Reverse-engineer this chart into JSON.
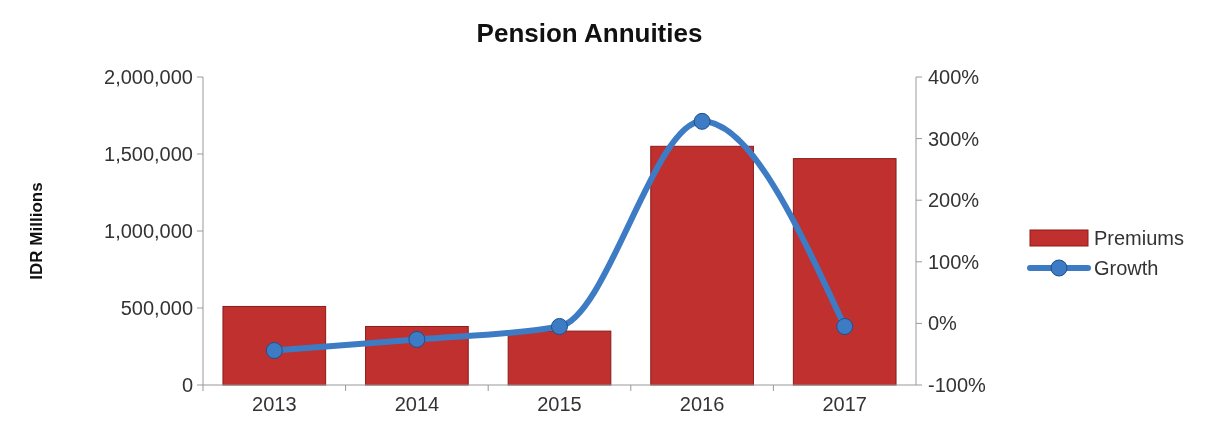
{
  "chart_data": {
    "type": "bar",
    "title": "Pension Annuities",
    "ylabel": "IDR Millions",
    "categories": [
      "2013",
      "2014",
      "2015",
      "2016",
      "2017"
    ],
    "series": [
      {
        "name": "Premiums",
        "color": "#c0302e",
        "values": [
          510000,
          380000,
          350000,
          1550000,
          1470000
        ]
      },
      {
        "name": "Growth",
        "type": "line",
        "axis": "y2",
        "color": "#3d7cc4",
        "values": [
          -44,
          -26,
          -5,
          328,
          -5
        ]
      }
    ],
    "ylim": [
      0,
      2000000
    ],
    "yticks": [
      {
        "value": 0,
        "label": "0"
      },
      {
        "value": 500000,
        "label": "500,000"
      },
      {
        "value": 1000000,
        "label": "1,000,000"
      },
      {
        "value": 1500000,
        "label": "1,500,000"
      },
      {
        "value": 2000000,
        "label": "2,000,000"
      }
    ],
    "y2lim": [
      -100,
      400
    ],
    "y2ticks": [
      {
        "value": -100,
        "label": "-100%"
      },
      {
        "value": 0,
        "label": "0%"
      },
      {
        "value": 100,
        "label": "100%"
      },
      {
        "value": 200,
        "label": "200%"
      },
      {
        "value": 300,
        "label": "300%"
      },
      {
        "value": 400,
        "label": "400%"
      }
    ],
    "legend": "right",
    "marker": "circle",
    "grid": false
  }
}
